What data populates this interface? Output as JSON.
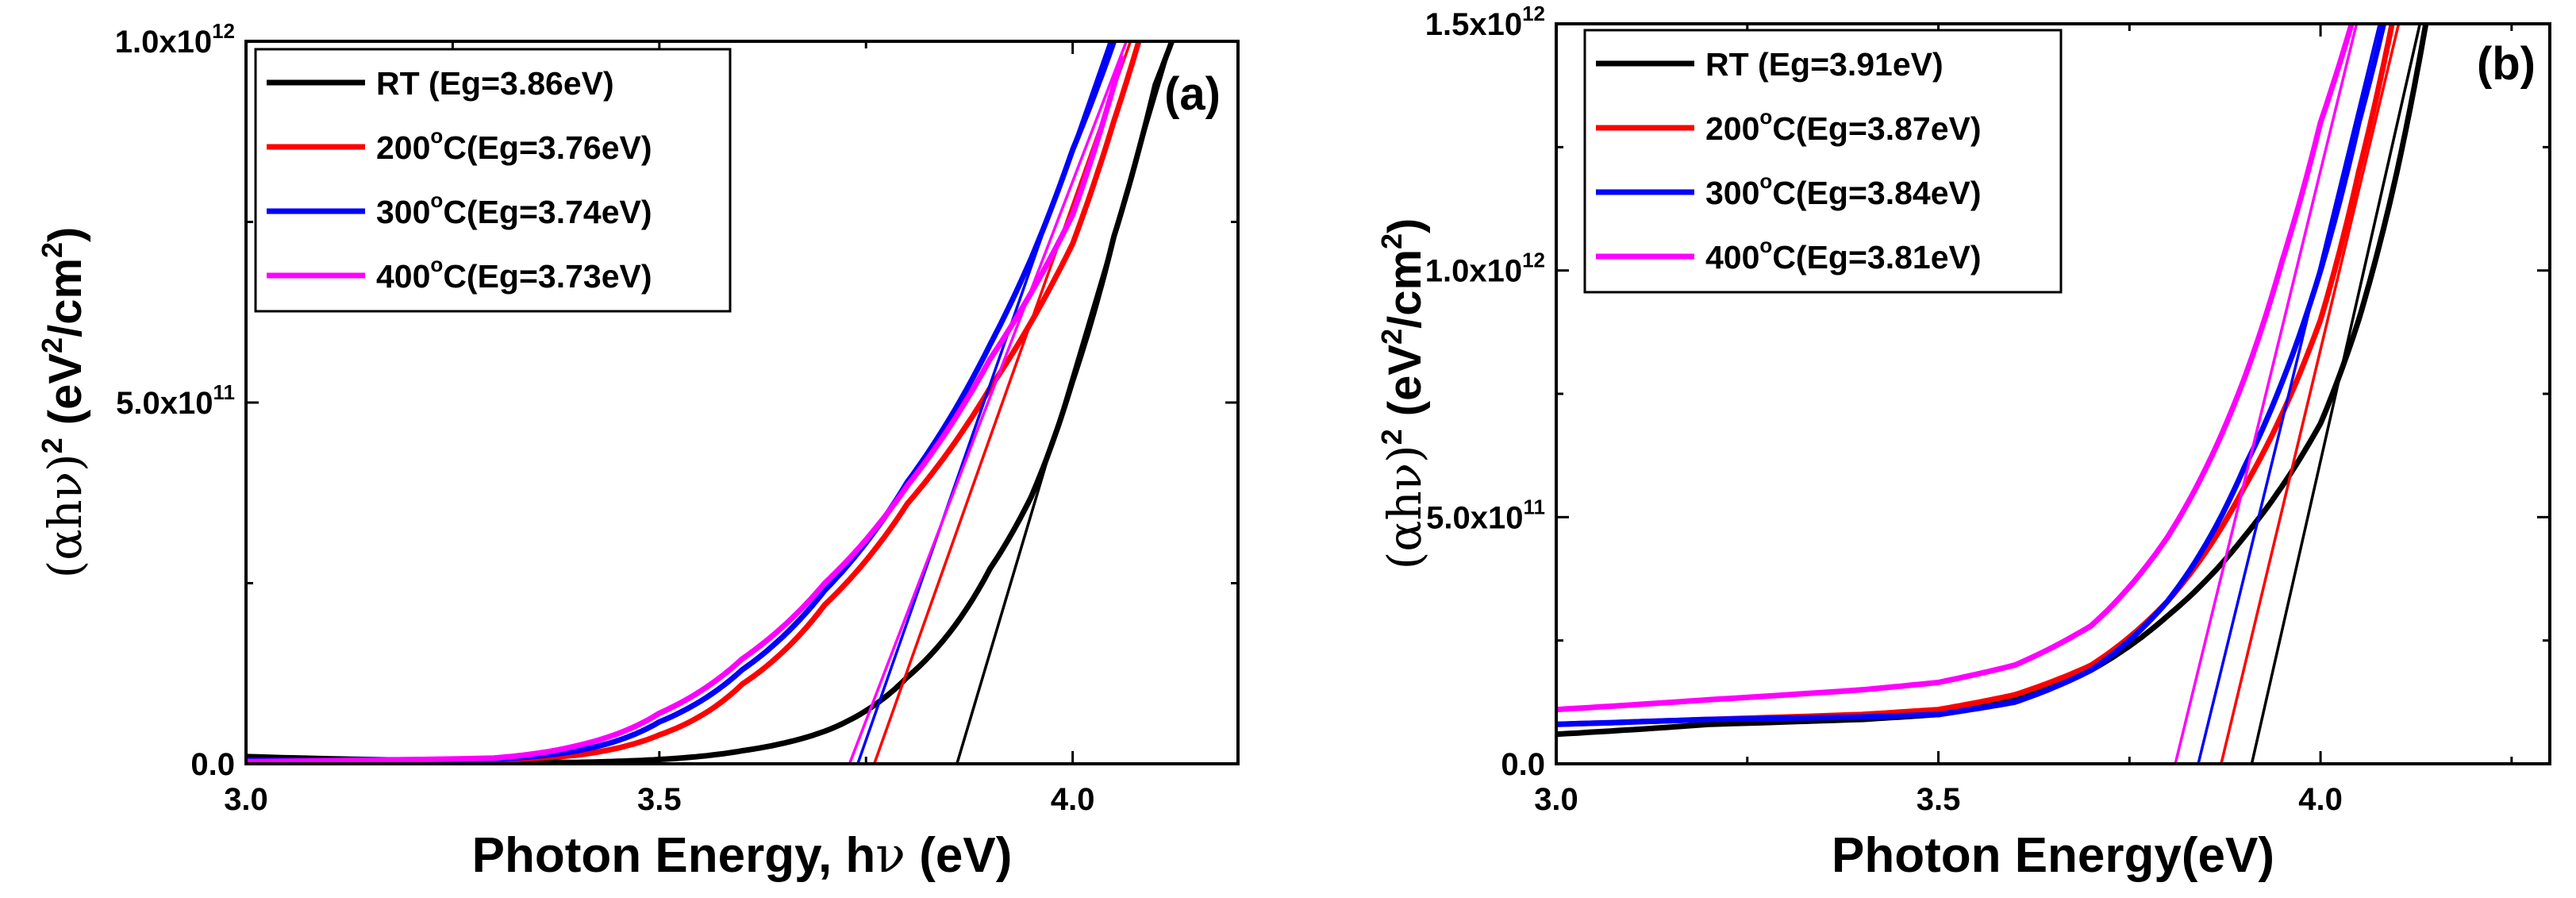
{
  "chart_data": [
    {
      "type": "line",
      "panel_label": "(a)",
      "xlabel_main": "Photon Energy, h",
      "xlabel_nu": "ν",
      "xlabel_unit": " (eV)",
      "ylabel": {
        "base": "(αhν)",
        "exp": "2",
        "unit_open": " (eV",
        "unit_exp1": "2",
        "unit_mid": "/cm",
        "unit_exp2": "2",
        "unit_close": ")"
      },
      "xlim": [
        3.0,
        4.2
      ],
      "ylim": [
        0,
        1000000000000.0
      ],
      "xticks": [
        {
          "value": 3.0,
          "label": "3.0"
        },
        {
          "value": 3.5,
          "label": "3.5"
        },
        {
          "value": 4.0,
          "label": "4.0"
        }
      ],
      "yticks": [
        {
          "value": 0,
          "mantissa": "0.0",
          "exp": ""
        },
        {
          "value": 500000000000.0,
          "mantissa": "5.0x10",
          "exp": "11"
        },
        {
          "value": 1000000000000.0,
          "mantissa": "1.0x10",
          "exp": "12"
        }
      ],
      "series": [
        {
          "name": "RT",
          "label_head": "RT",
          "label_sup": "",
          "label_tail": "     (Eg=3.86eV)",
          "color": "#000000",
          "eg": 3.86,
          "fit_end": [
            4.12,
            1000000000000.0
          ],
          "points": [
            [
              3.0,
              10000000000.0
            ],
            [
              3.2,
              5000000000.0
            ],
            [
              3.4,
              2000000000.0
            ],
            [
              3.5,
              6000000000.0
            ],
            [
              3.6,
              18000000000.0
            ],
            [
              3.7,
              45000000000.0
            ],
            [
              3.8,
              120000000000.0
            ],
            [
              3.9,
              270000000000.0
            ],
            [
              3.95,
              370000000000.0
            ],
            [
              4.0,
              530000000000.0
            ],
            [
              4.05,
              730000000000.0
            ],
            [
              4.1,
              940000000000.0
            ],
            [
              4.12,
              1000000000000.0
            ]
          ]
        },
        {
          "name": "200oC",
          "label_head": "200",
          "label_sup": "o",
          "label_tail": "C(Eg=3.76eV)",
          "color": "#ff0000",
          "eg": 3.76,
          "fit_end": [
            4.07,
            1000000000000.0
          ],
          "points": [
            [
              3.0,
              5000000000.0
            ],
            [
              3.3,
              5000000000.0
            ],
            [
              3.4,
              12000000000.0
            ],
            [
              3.5,
              40000000000.0
            ],
            [
              3.6,
              110000000000.0
            ],
            [
              3.7,
              220000000000.0
            ],
            [
              3.8,
              360000000000.0
            ],
            [
              3.9,
              520000000000.0
            ],
            [
              4.0,
              720000000000.0
            ],
            [
              4.05,
              890000000000.0
            ],
            [
              4.08,
              1000000000000.0
            ]
          ]
        },
        {
          "name": "300oC",
          "label_head": "300",
          "label_sup": "o",
          "label_tail": "C(Eg=3.74eV)",
          "color": "#0000ff",
          "eg": 3.74,
          "fit_end": [
            4.045,
            1000000000000.0
          ],
          "points": [
            [
              3.0,
              5000000000.0
            ],
            [
              3.3,
              6000000000.0
            ],
            [
              3.4,
              18000000000.0
            ],
            [
              3.5,
              58000000000.0
            ],
            [
              3.6,
              130000000000.0
            ],
            [
              3.7,
              240000000000.0
            ],
            [
              3.8,
              390000000000.0
            ],
            [
              3.9,
              580000000000.0
            ],
            [
              3.95,
              700000000000.0
            ],
            [
              4.0,
              850000000000.0
            ],
            [
              4.05,
              1000000000000.0
            ]
          ]
        },
        {
          "name": "400oC",
          "label_head": "400",
          "label_sup": "o",
          "label_tail": "C(Eg=3.73eV)",
          "color": "#ff00ff",
          "eg": 3.73,
          "fit_end": [
            4.065,
            1000000000000.0
          ],
          "points": [
            [
              3.0,
              3000000000.0
            ],
            [
              3.3,
              8000000000.0
            ],
            [
              3.4,
              25000000000.0
            ],
            [
              3.5,
              70000000000.0
            ],
            [
              3.6,
              145000000000.0
            ],
            [
              3.7,
              250000000000.0
            ],
            [
              3.8,
              385000000000.0
            ],
            [
              3.9,
              560000000000.0
            ],
            [
              4.0,
              760000000000.0
            ],
            [
              4.06,
              980000000000.0
            ]
          ]
        }
      ]
    },
    {
      "type": "line",
      "panel_label": "(b)",
      "xlabel_main": "Photon Energy(eV)",
      "ylabel": {
        "base": "(αhν)",
        "exp": "2",
        "unit_open": " (eV",
        "unit_exp1": "2",
        "unit_mid": "/cm",
        "unit_exp2": "2",
        "unit_close": ")"
      },
      "xlim": [
        3.0,
        4.3
      ],
      "ylim": [
        0,
        1500000000000.0
      ],
      "xticks": [
        {
          "value": 3.0,
          "label": "3.0"
        },
        {
          "value": 3.5,
          "label": "3.5"
        },
        {
          "value": 4.0,
          "label": "4.0"
        }
      ],
      "yticks": [
        {
          "value": 0,
          "mantissa": "0.0",
          "exp": ""
        },
        {
          "value": 500000000000.0,
          "mantissa": "5.0x10",
          "exp": "11"
        },
        {
          "value": 1000000000000.0,
          "mantissa": "1.0x10",
          "exp": "12"
        },
        {
          "value": 1500000000000.0,
          "mantissa": "1.5x10",
          "exp": "12"
        }
      ],
      "series": [
        {
          "name": "RT",
          "label_head": "RT",
          "label_sup": "",
          "label_tail": "     (Eg=3.91eV)",
          "color": "#000000",
          "eg": 3.91,
          "fit_end": [
            4.13,
            1500000000000.0
          ],
          "points": [
            [
              3.0,
              60000000000.0
            ],
            [
              3.2,
              80000000000.0
            ],
            [
              3.4,
              90000000000.0
            ],
            [
              3.5,
              100000000000.0
            ],
            [
              3.6,
              130000000000.0
            ],
            [
              3.7,
              190000000000.0
            ],
            [
              3.8,
              300000000000.0
            ],
            [
              3.9,
              460000000000.0
            ],
            [
              4.0,
              690000000000.0
            ],
            [
              4.05,
              900000000000.0
            ],
            [
              4.1,
              1200000000000.0
            ],
            [
              4.14,
              1520000000000.0
            ]
          ]
        },
        {
          "name": "200oC",
          "label_head": "200",
          "label_sup": "o",
          "label_tail": "C(Eg=3.87eV)",
          "color": "#ff0000",
          "eg": 3.87,
          "fit_end": [
            4.11,
            1550000000000.0
          ],
          "points": [
            [
              3.0,
              80000000000.0
            ],
            [
              3.2,
              90000000000.0
            ],
            [
              3.4,
              100000000000.0
            ],
            [
              3.5,
              110000000000.0
            ],
            [
              3.6,
              140000000000.0
            ],
            [
              3.7,
              200000000000.0
            ],
            [
              3.8,
              330000000000.0
            ],
            [
              3.9,
              560000000000.0
            ],
            [
              4.0,
              900000000000.0
            ],
            [
              4.05,
              1200000000000.0
            ],
            [
              4.1,
              1550000000000.0
            ]
          ]
        },
        {
          "name": "300oC",
          "label_head": "300",
          "label_sup": "o",
          "label_tail": "C(Eg=3.84eV)",
          "color": "#0000ff",
          "eg": 3.84,
          "fit_end": [
            4.085,
            1550000000000.0
          ],
          "points": [
            [
              3.0,
              80000000000.0
            ],
            [
              3.2,
              90000000000.0
            ],
            [
              3.4,
              95000000000.0
            ],
            [
              3.5,
              100000000000.0
            ],
            [
              3.6,
              125000000000.0
            ],
            [
              3.7,
              190000000000.0
            ],
            [
              3.8,
              330000000000.0
            ],
            [
              3.9,
              600000000000.0
            ],
            [
              4.0,
              1000000000000.0
            ],
            [
              4.05,
              1300000000000.0
            ],
            [
              4.09,
              1550000000000.0
            ]
          ]
        },
        {
          "name": "400oC",
          "label_head": "400",
          "label_sup": "o",
          "label_tail": "C(Eg=3.81eV)",
          "color": "#ff00ff",
          "eg": 3.81,
          "fit_end": [
            4.055,
            1550000000000.0
          ],
          "points": [
            [
              3.0,
              110000000000.0
            ],
            [
              3.2,
              130000000000.0
            ],
            [
              3.4,
              150000000000.0
            ],
            [
              3.5,
              165000000000.0
            ],
            [
              3.6,
              200000000000.0
            ],
            [
              3.7,
              280000000000.0
            ],
            [
              3.8,
              460000000000.0
            ],
            [
              3.9,
              780000000000.0
            ],
            [
              3.95,
              1020000000000.0
            ],
            [
              4.0,
              1300000000000.0
            ],
            [
              4.05,
              1550000000000.0
            ]
          ]
        }
      ]
    }
  ]
}
